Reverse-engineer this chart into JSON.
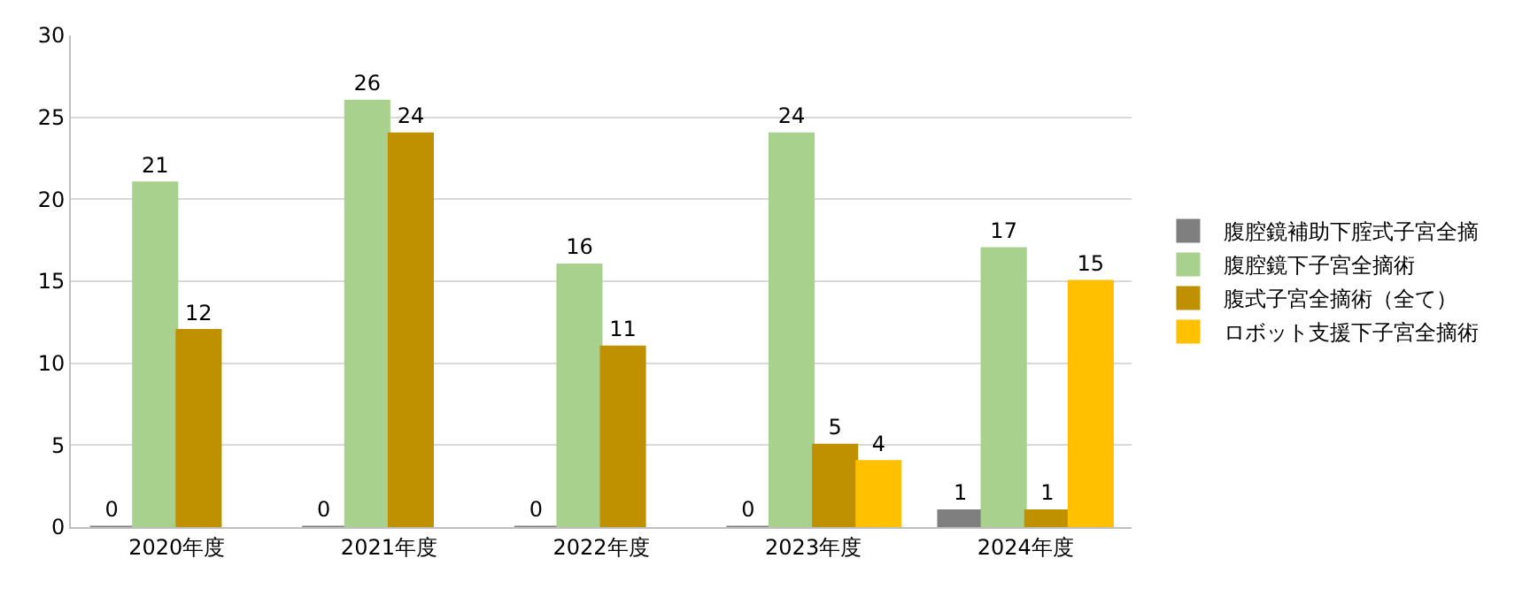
{
  "chart_data": {
    "type": "bar",
    "categories": [
      "2020年度",
      "2021年度",
      "2022年度",
      "2023年度",
      "2024年度"
    ],
    "series": [
      {
        "name": "腹腔鏡補助下腟式子宮全摘",
        "color": "#7f7f7f",
        "values": [
          0,
          0,
          0,
          0,
          1
        ]
      },
      {
        "name": "腹腔鏡下子宮全摘術",
        "color": "#a9d18e",
        "values": [
          21,
          26,
          16,
          24,
          17
        ]
      },
      {
        "name": "腹式子宮全摘術（全て）",
        "color": "#bf9000",
        "values": [
          12,
          24,
          11,
          5,
          1
        ]
      },
      {
        "name": "ロボット支援下子宮全摘術",
        "color": "#ffc000",
        "values": [
          null,
          null,
          null,
          4,
          15
        ]
      }
    ],
    "ylim": [
      0,
      30
    ],
    "yticks": [
      0,
      5,
      10,
      15,
      20,
      25,
      30
    ],
    "grid": "y",
    "legend": "right",
    "data_labels": true
  }
}
